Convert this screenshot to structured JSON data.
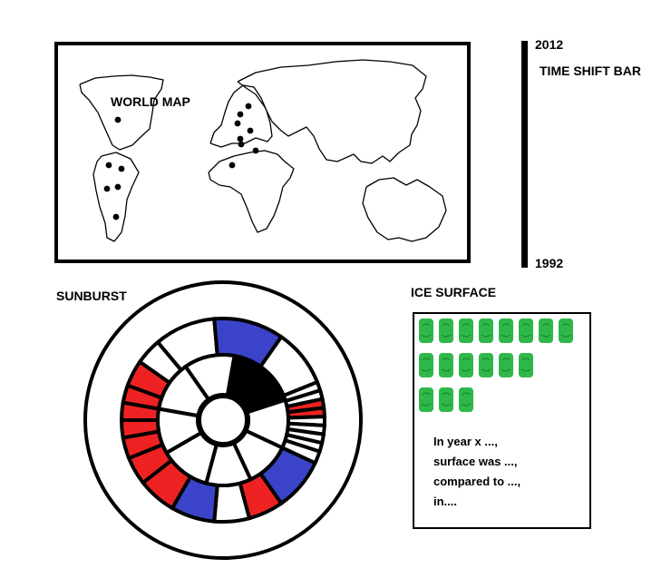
{
  "world_map": {
    "label": "WORLD MAP",
    "land_color": "#000000",
    "marker_color": "#000000"
  },
  "time_shift_bar": {
    "label": "TIME SHIFT BAR",
    "start_year": "1992",
    "end_year": "2012"
  },
  "sunburst": {
    "label": "SUNBURST",
    "colors": {
      "red": "#ee2222",
      "blue": "#3b44c8",
      "black": "#000000",
      "white": "#ffffff"
    }
  },
  "ice_surface": {
    "label": "ICE SURFACE",
    "tile_color": "#2eb84a",
    "tile_rows": [
      8,
      6,
      3
    ],
    "text_lines": [
      "In year x ...,",
      "surface was ...,",
      "compared to ...,",
      "in...."
    ]
  }
}
